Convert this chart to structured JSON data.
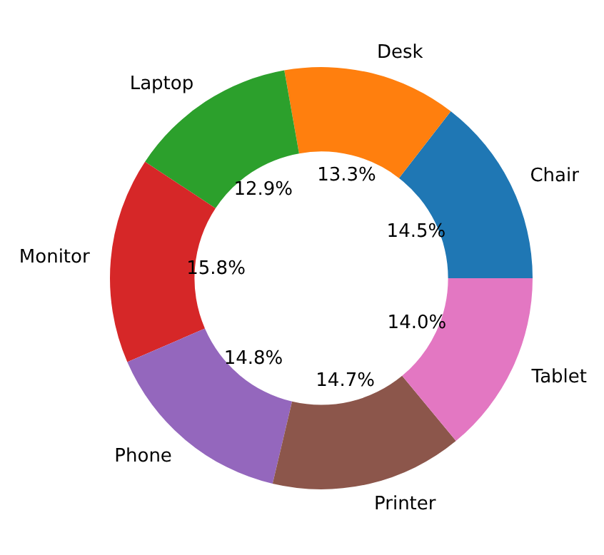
{
  "chart_data": {
    "type": "donut",
    "categories": [
      "Chair",
      "Desk",
      "Laptop",
      "Monitor",
      "Phone",
      "Printer",
      "Tablet"
    ],
    "values": [
      14.5,
      13.3,
      12.9,
      15.8,
      14.8,
      14.7,
      14.0
    ],
    "value_labels": [
      "14.5%",
      "13.3%",
      "12.9%",
      "15.8%",
      "14.8%",
      "14.7%",
      "14.0%"
    ],
    "colors": [
      "#1f77b4",
      "#ff7f0e",
      "#2ca02c",
      "#d62728",
      "#9467bd",
      "#8c564b",
      "#e377c2"
    ]
  }
}
